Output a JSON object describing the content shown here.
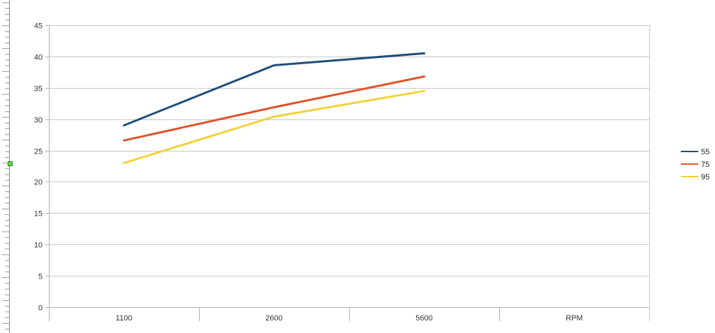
{
  "chart_data": {
    "type": "line",
    "categories": [
      "1100",
      "2600",
      "5600",
      "RPM"
    ],
    "series": [
      {
        "name": "55",
        "color": "#1f4e79",
        "values": [
          29,
          38.6,
          40.5,
          null
        ]
      },
      {
        "name": "75",
        "color": "#e0522a",
        "values": [
          26.6,
          31.9,
          36.8,
          null
        ]
      },
      {
        "name": "95",
        "color": "#f3d23a",
        "values": [
          23,
          30.4,
          34.5,
          null
        ]
      }
    ],
    "yticks": [
      "0",
      "5",
      "10",
      "15",
      "20",
      "25",
      "30",
      "35",
      "40",
      "45"
    ],
    "ylim": [
      0,
      45
    ],
    "title": "",
    "xlabel": "",
    "ylabel": "",
    "grid": true,
    "legend_position": "right"
  }
}
